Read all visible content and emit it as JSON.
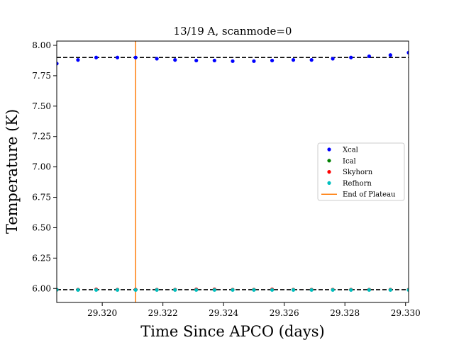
{
  "chart_data": {
    "type": "scatter",
    "title": "13/19 A, scanmode=0",
    "xlabel": "Time Since APCO (days)",
    "ylabel": "Temperature (K)",
    "xlim": [
      29.3185,
      29.3301
    ],
    "ylim": [
      5.885,
      8.035
    ],
    "x_ticks": [
      29.32,
      29.322,
      29.324,
      29.326,
      29.328,
      29.33
    ],
    "x_tick_labels": [
      "29.320",
      "29.322",
      "29.324",
      "29.326",
      "29.328",
      "29.330"
    ],
    "y_ticks": [
      6.0,
      6.25,
      6.5,
      6.75,
      7.0,
      7.25,
      7.5,
      7.75,
      8.0
    ],
    "y_tick_labels": [
      "6.00",
      "6.25",
      "6.50",
      "6.75",
      "7.00",
      "7.25",
      "7.50",
      "7.75",
      "8.00"
    ],
    "grid": false,
    "legend_position": "center-right",
    "series": [
      {
        "name": "Xcal",
        "kind": "scatter",
        "color": "#0000ff",
        "x": [
          29.3185,
          29.3192,
          29.3198,
          29.3205,
          29.3211,
          29.3218,
          29.3224,
          29.3231,
          29.3237,
          29.3243,
          29.325,
          29.3256,
          29.3263,
          29.3269,
          29.3276,
          29.3282,
          29.3288,
          29.3295,
          29.3301
        ],
        "y": [
          7.85,
          7.88,
          7.9,
          7.9,
          7.9,
          7.89,
          7.88,
          7.875,
          7.875,
          7.87,
          7.87,
          7.875,
          7.88,
          7.88,
          7.89,
          7.9,
          7.91,
          7.92,
          7.94
        ]
      },
      {
        "name": "Ical",
        "kind": "scatter",
        "color": "#008000",
        "x": [
          29.3185,
          29.3192,
          29.3198,
          29.3205,
          29.3211,
          29.3218,
          29.3224,
          29.3231,
          29.3237,
          29.3243,
          29.325,
          29.3256,
          29.3263,
          29.3269,
          29.3276,
          29.3282,
          29.3288,
          29.3295,
          29.3301
        ],
        "y": [
          5.99,
          5.99,
          5.99,
          5.99,
          5.99,
          5.99,
          5.99,
          5.99,
          5.99,
          5.99,
          5.99,
          5.99,
          5.99,
          5.99,
          5.99,
          5.99,
          5.99,
          5.99,
          5.99
        ]
      },
      {
        "name": "Skyhorn",
        "kind": "scatter",
        "color": "#ff0000",
        "x": [
          29.3185,
          29.3192,
          29.3198,
          29.3205,
          29.3211,
          29.3218,
          29.3224,
          29.3231,
          29.3237,
          29.3243,
          29.325,
          29.3256,
          29.3263,
          29.3269,
          29.3276,
          29.3282,
          29.3288,
          29.3295,
          29.3301
        ],
        "y": [
          5.99,
          5.99,
          5.993,
          5.99,
          5.99,
          5.99,
          5.99,
          5.993,
          5.993,
          5.99,
          5.99,
          5.993,
          5.99,
          5.99,
          5.99,
          5.99,
          5.99,
          5.99,
          5.99
        ]
      },
      {
        "name": "Refhorn",
        "kind": "scatter",
        "color": "#00bfbf",
        "x": [
          29.3185,
          29.3192,
          29.3198,
          29.3205,
          29.3211,
          29.3218,
          29.3224,
          29.3231,
          29.3237,
          29.3243,
          29.325,
          29.3256,
          29.3263,
          29.3269,
          29.3276,
          29.3282,
          29.3288,
          29.3295,
          29.3301
        ],
        "y": [
          5.99,
          5.988,
          5.988,
          5.988,
          5.988,
          5.988,
          5.988,
          5.988,
          5.988,
          5.988,
          5.988,
          5.988,
          5.988,
          5.988,
          5.988,
          5.988,
          5.988,
          5.988,
          5.988
        ]
      }
    ],
    "reference_lines": [
      {
        "orientation": "horizontal",
        "y": 7.9,
        "color": "#000000",
        "style": "dashed"
      },
      {
        "orientation": "horizontal",
        "y": 5.99,
        "color": "#000000",
        "style": "dashed"
      },
      {
        "orientation": "vertical",
        "x": 29.3211,
        "color": "#ff7f0e",
        "style": "solid",
        "name": "End of Plateau"
      }
    ],
    "legend": [
      {
        "label": "Xcal",
        "kind": "marker",
        "color": "#0000ff"
      },
      {
        "label": "Ical",
        "kind": "marker",
        "color": "#008000"
      },
      {
        "label": "Skyhorn",
        "kind": "marker",
        "color": "#ff0000"
      },
      {
        "label": "Refhorn",
        "kind": "marker",
        "color": "#00bfbf"
      },
      {
        "label": "End of Plateau",
        "kind": "line",
        "color": "#ff7f0e"
      }
    ]
  }
}
